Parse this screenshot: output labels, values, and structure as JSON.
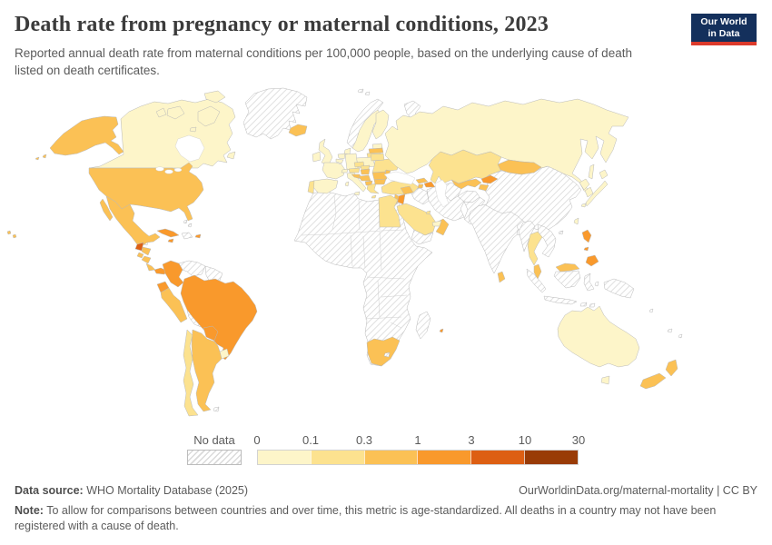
{
  "header": {
    "title": "Death rate from pregnancy or maternal conditions, 2023",
    "subtitle": "Reported annual death rate from maternal conditions per 100,000 people, based on the underlying cause of death listed on death certificates."
  },
  "logo": {
    "line1": "Our World",
    "line2": "in Data",
    "bg": "#14305c",
    "stripe": "#dc3a2b"
  },
  "chart_data": {
    "type": "choropleth_map",
    "title": "Death rate from pregnancy or maternal conditions",
    "year": "2023",
    "unit": "deaths per 100,000 people",
    "legend": {
      "no_data_label": "No data",
      "ticks": [
        "0",
        "0.1",
        "0.3",
        "1",
        "3",
        "10",
        "30"
      ],
      "bucket_labels": [
        "no-data",
        "0-0.1",
        "0.1-0.3",
        "0.3-1",
        "1-3",
        "3-10",
        "10-30"
      ],
      "bucket_colors": [
        "hatch",
        "#fdf5c9",
        "#fce28f",
        "#fbc155",
        "#f9992c",
        "#dd5f13",
        "#993b06"
      ]
    },
    "countries": {
      "Greenland": "no-data",
      "Norway": "no-data",
      "Novaya Zemlya": "no-data",
      "Svalbard": "no-data",
      "Venezuela": "no-data",
      "Guianas": "no-data",
      "Bolivia": "no-data",
      "Falkland Islands": "no-data",
      "Haiti & Dominican Republic": "no-data",
      "Bahamas": "no-data",
      "Belize": "no-data",
      "Africa (most countries)": "no-data",
      "Madagascar": "no-data",
      "Lesotho": "no-data",
      "Yemen": "no-data",
      "Iran": "no-data",
      "Iraq": "no-data",
      "Turkmenistan": "no-data",
      "Afghanistan": "no-data",
      "Pakistan": "no-data",
      "China": "no-data",
      "Bangladesh": "no-data",
      "Myanmar": "no-data",
      "Vietnam Laos & Cambodia": "no-data",
      "Indonesia": "no-data",
      "New Guinea": "no-data",
      "Pacific islands": "no-data",
      "Canada": "0-0.1",
      "Russia": "0-0.1",
      "Sweden": "0-0.1",
      "Finland": "0-0.1",
      "Denmark": "0-0.1",
      "Estonia": "0-0.1",
      "Poland": "0-0.1",
      "Germany": "0-0.1",
      "Netherlands": "0-0.1",
      "Belgium": "0-0.1",
      "United Kingdom": "0-0.1",
      "Ireland": "0-0.1",
      "France": "0-0.1",
      "Switzerland": "0-0.1",
      "Spain": "0-0.1",
      "Italy": "0-0.1",
      "Uruguay": "0-0.1",
      "United Arab Emirates": "0-0.1",
      "Taiwan": "0-0.1",
      "North Korea": "0-0.1",
      "South Korea": "0-0.1",
      "Japan": "0-0.1",
      "Australia": "0-0.1",
      "Portugal": "0.1-0.3",
      "Czechia": "0.1-0.3",
      "Slovakia": "0.1-0.3",
      "Austria": "0.1-0.3",
      "Lithuania": "0.1-0.3",
      "Belarus": "0.1-0.3",
      "Ukraine": "0.1-0.3",
      "Greece": "0.1-0.3",
      "Turkey": "0.1-0.3",
      "Egypt": "0.1-0.3",
      "Saudi Arabia": "0.1-0.3",
      "Kuwait": "0.1-0.3",
      "Kazakhstan": "0.1-0.3",
      "Thailand": "0.1-0.3",
      "Chile": "0.1-0.3",
      "United States": "0.3-1",
      "Mexico": "0.3-1",
      "Honduras": "0.3-1",
      "El Salvador": "0.3-1",
      "Nicaragua": "0.3-1",
      "Costa Rica": "0.3-1",
      "Peru": "0.3-1",
      "Argentina": "0.3-1",
      "Latvia": "0.3-1",
      "Hungary": "0.3-1",
      "Croatia & Slovenia": "0.3-1",
      "Serbia & Bosnia": "0.3-1",
      "Albania & North Macedonia": "0.3-1",
      "Romania": "0.3-1",
      "Bulgaria": "0.3-1",
      "Moldova": "0.3-1",
      "Georgia": "0.3-1",
      "Armenia": "0.3-1",
      "Syria": "0.3-1",
      "Israel": "0.3-1",
      "Oman": "0.3-1",
      "Uzbekistan": "0.3-1",
      "Tajikistan": "0.3-1",
      "Mongolia": "0.3-1",
      "Malaysia": "0.3-1",
      "Sri Lanka": "0.3-1",
      "South Africa": "0.3-1",
      "New Zealand": "0.3-1",
      "Iceland": "0.3-1",
      "Colombia": "1-3",
      "Ecuador": "1-3",
      "Brazil": "1-3",
      "Paraguay": "1-3",
      "Cuba": "1-3",
      "Jamaica": "1-3",
      "Puerto Rico": "1-3",
      "Panama": "1-3",
      "Jordan": "1-3",
      "Azerbaijan": "1-3",
      "Kyrgyzstan": "1-3",
      "Philippines": "1-3",
      "Mauritius": "1-3",
      "Guatemala": "3-10"
    }
  },
  "footer": {
    "source_label": "Data source:",
    "source_value": " WHO Mortality Database (2025)",
    "attribution": "OurWorldinData.org/maternal-mortality | CC BY",
    "note_label": "Note:",
    "note_value": " To allow for comparisons between countries and over time, this metric is age-standardized. All deaths in a country may not have been registered with a cause of death."
  }
}
